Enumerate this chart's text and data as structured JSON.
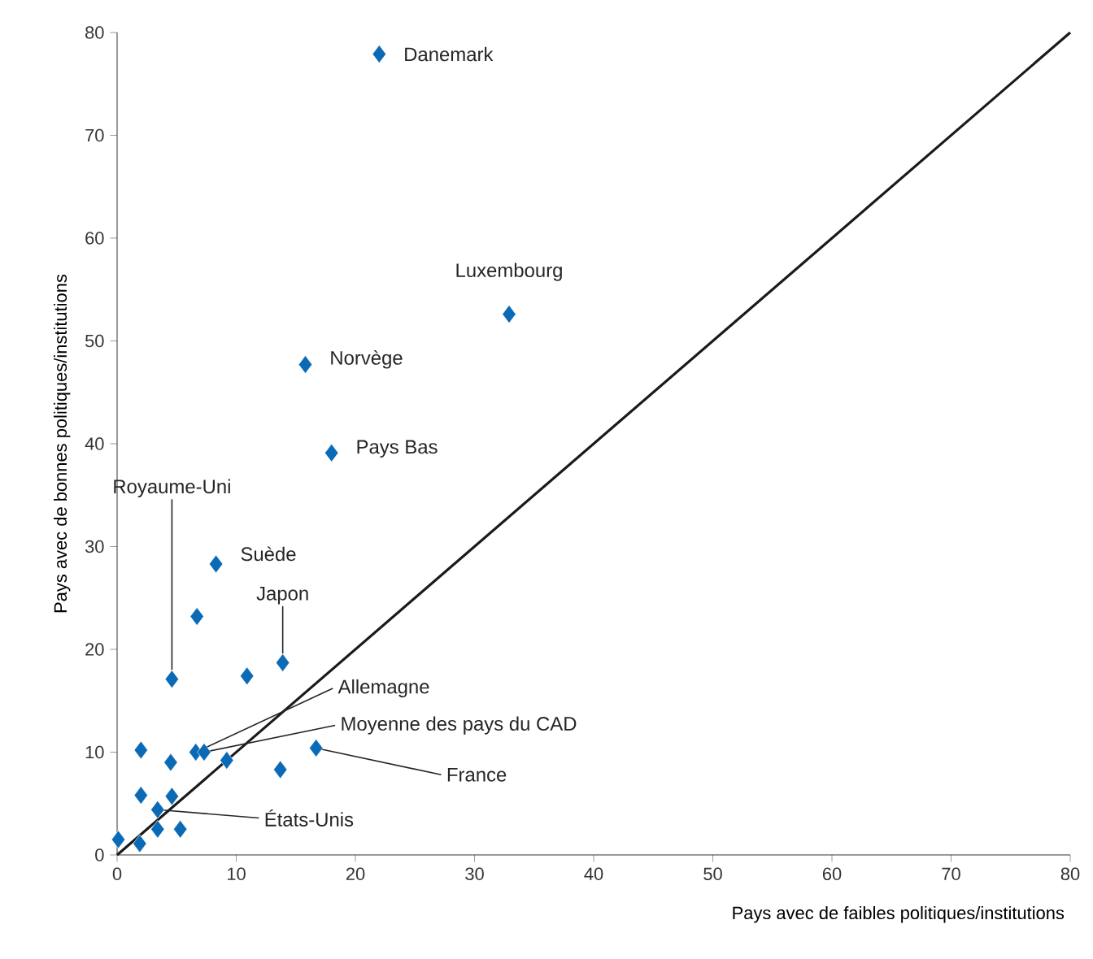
{
  "chart_data": {
    "type": "scatter",
    "xlabel": "Pays avec de faibles politiques/institutions",
    "ylabel": "Pays avec de bonnes politiques/institutions",
    "xlim": [
      0,
      80
    ],
    "ylim": [
      0,
      80
    ],
    "xticks": [
      0,
      10,
      20,
      30,
      40,
      50,
      60,
      70,
      80
    ],
    "yticks": [
      0,
      10,
      20,
      30,
      40,
      50,
      60,
      70,
      80
    ],
    "marker": "diamond",
    "series": [
      {
        "color": "#0a6ab6",
        "x": [
          22.0,
          32.9,
          15.8,
          18.0,
          8.3,
          6.7,
          4.6,
          10.9,
          13.9,
          2.0,
          6.6,
          7.3,
          4.5,
          9.2,
          13.7,
          16.7,
          2.0,
          4.6,
          3.4,
          3.4,
          5.3,
          0.1,
          1.9
        ],
        "values": [
          77.9,
          52.6,
          47.7,
          39.1,
          28.3,
          23.2,
          17.1,
          17.4,
          18.7,
          10.2,
          10.0,
          10.0,
          9.0,
          9.2,
          8.3,
          10.4,
          5.8,
          5.7,
          4.4,
          2.5,
          2.5,
          1.5,
          1.1
        ]
      },
      {
        "type": "line",
        "color": "#1a1a1a",
        "marker": "none",
        "x": [
          0,
          80
        ],
        "values": [
          0,
          80
        ]
      }
    ],
    "annotations": [
      {
        "text": "Danemark",
        "x": 22.0,
        "y": 77.9
      },
      {
        "text": "Luxembourg",
        "x": 32.9,
        "y": 52.6
      },
      {
        "text": "Norvège",
        "x": 15.8,
        "y": 47.7
      },
      {
        "text": "Pays Bas",
        "x": 18.0,
        "y": 39.1
      },
      {
        "text": "Suède",
        "x": 8.3,
        "y": 28.3
      },
      {
        "text": "Royaume-Uni",
        "x": 4.6,
        "y": 17.1
      },
      {
        "text": "Japon",
        "x": 13.9,
        "y": 18.7
      },
      {
        "text": "Allemagne",
        "x": 6.6,
        "y": 10.0
      },
      {
        "text": "Moyenne des pays du CAD",
        "x": 7.3,
        "y": 10.0
      },
      {
        "text": "France",
        "x": 16.7,
        "y": 10.4
      },
      {
        "text": "États-Unis",
        "x": 3.4,
        "y": 4.4
      }
    ]
  }
}
